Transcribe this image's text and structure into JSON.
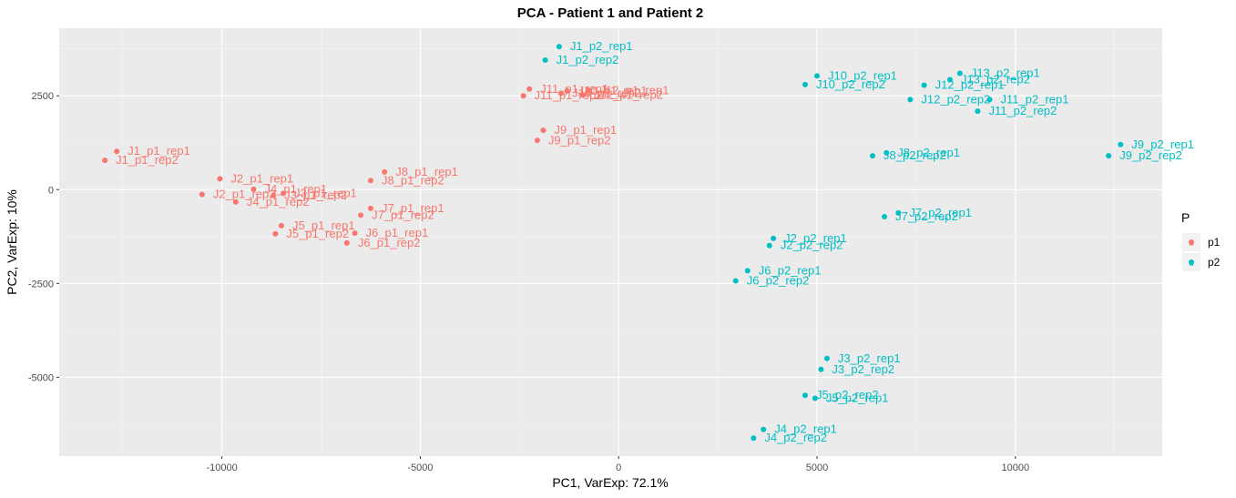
{
  "chart_data": {
    "type": "scatter",
    "title": "PCA - Patient 1 and Patient 2",
    "xlabel": "PC1, VarExp: 72.1%",
    "ylabel": "PC2, VarExp: 10%",
    "xlim": [
      -14100,
      13700
    ],
    "ylim": [
      -7100,
      4300
    ],
    "x_ticks": [
      -10000,
      -5000,
      0,
      5000,
      10000
    ],
    "x_tick_labels": [
      "-10000",
      "-5000",
      "0",
      "5000",
      "10000"
    ],
    "y_ticks": [
      -5000,
      -2500,
      0,
      2500
    ],
    "y_tick_labels": [
      "-5000",
      "-2500",
      "0",
      "2500"
    ],
    "grid": true,
    "panel_background": "#ebebeb",
    "legend": {
      "title": "P",
      "position": "right",
      "entries": [
        {
          "label": "p1",
          "key_glyph": "a",
          "color": "#F8766D"
        },
        {
          "label": "p2",
          "key_glyph": "a",
          "color": "#00BFC4"
        }
      ]
    },
    "series": [
      {
        "name": "p1",
        "color": "#F8766D",
        "points": [
          {
            "label": "J1_p1_rep1",
            "x": -12650,
            "y": 1020
          },
          {
            "label": "J1_p1_rep2",
            "x": -12950,
            "y": 780
          },
          {
            "label": "J2_p1_rep1",
            "x": -10050,
            "y": 290
          },
          {
            "label": "J2_p1_rep2",
            "x": -10500,
            "y": -130
          },
          {
            "label": "J3_p1_rep1",
            "x": -8450,
            "y": -100
          },
          {
            "label": "J3_p1_rep2",
            "x": -8700,
            "y": -150
          },
          {
            "label": "J4_p1_rep1",
            "x": -9200,
            "y": 10
          },
          {
            "label": "J4_p1_rep2",
            "x": -9650,
            "y": -330
          },
          {
            "label": "J5_p1_rep1",
            "x": -8500,
            "y": -960
          },
          {
            "label": "J5_p1_rep2",
            "x": -8650,
            "y": -1180
          },
          {
            "label": "J6_p1_rep1",
            "x": -6650,
            "y": -1160
          },
          {
            "label": "J6_p1_rep2",
            "x": -6850,
            "y": -1420
          },
          {
            "label": "J7_p1_rep1",
            "x": -6250,
            "y": -500
          },
          {
            "label": "J7_p1_rep2",
            "x": -6500,
            "y": -680
          },
          {
            "label": "J8_p1_rep1",
            "x": -5900,
            "y": 470
          },
          {
            "label": "J8_p1_rep2",
            "x": -6250,
            "y": 240
          },
          {
            "label": "J9_p1_rep1",
            "x": -1900,
            "y": 1580
          },
          {
            "label": "J9_p1_rep2",
            "x": -2050,
            "y": 1310
          },
          {
            "label": "J10_p1_rep1",
            "x": -1300,
            "y": 2630
          },
          {
            "label": "J10_p1_rep2",
            "x": -1450,
            "y": 2570
          },
          {
            "label": "J11_p1_rep1",
            "x": -2250,
            "y": 2680
          },
          {
            "label": "J11_p1_rep2",
            "x": -2400,
            "y": 2500
          },
          {
            "label": "J12_p1_rep1",
            "x": -750,
            "y": 2640
          },
          {
            "label": "J12_p1_rep2",
            "x": -900,
            "y": 2520
          }
        ]
      },
      {
        "name": "p2",
        "color": "#00BFC4",
        "points": [
          {
            "label": "J1_p2_rep1",
            "x": -1500,
            "y": 3810
          },
          {
            "label": "J1_p2_rep2",
            "x": -1850,
            "y": 3450
          },
          {
            "label": "J10_p2_rep1",
            "x": 5000,
            "y": 3030
          },
          {
            "label": "J10_p2_rep2",
            "x": 4700,
            "y": 2800
          },
          {
            "label": "J13_p2_rep1",
            "x": 8600,
            "y": 3100
          },
          {
            "label": "J13_p2_rep2",
            "x": 8350,
            "y": 2930
          },
          {
            "label": "J12_p2_rep1",
            "x": 7700,
            "y": 2780
          },
          {
            "label": "J12_p2_rep2",
            "x": 7350,
            "y": 2400
          },
          {
            "label": "J11_p2_rep1",
            "x": 9350,
            "y": 2400
          },
          {
            "label": "J11_p2_rep2",
            "x": 9050,
            "y": 2090
          },
          {
            "label": "J9_p2_rep1",
            "x": 12650,
            "y": 1200
          },
          {
            "label": "J9_p2_rep2",
            "x": 12350,
            "y": 900
          },
          {
            "label": "J8_p2_rep1",
            "x": 6750,
            "y": 980
          },
          {
            "label": "J8_p2_rep2",
            "x": 6400,
            "y": 900
          },
          {
            "label": "J7_p2_rep1",
            "x": 7050,
            "y": -620
          },
          {
            "label": "J7_p2_rep2",
            "x": 6700,
            "y": -720
          },
          {
            "label": "J2_p2_rep1",
            "x": 3900,
            "y": -1300
          },
          {
            "label": "J2_p2_rep2",
            "x": 3800,
            "y": -1490
          },
          {
            "label": "J6_p2_rep1",
            "x": 3250,
            "y": -2160
          },
          {
            "label": "J6_p2_rep2",
            "x": 2950,
            "y": -2430
          },
          {
            "label": "J3_p2_rep1",
            "x": 5250,
            "y": -4500
          },
          {
            "label": "J3_p2_rep2",
            "x": 5100,
            "y": -4790
          },
          {
            "label": "J5_p2_rep1",
            "x": 4950,
            "y": -5560
          },
          {
            "label": "J5_p2_rep2",
            "x": 4700,
            "y": -5480
          },
          {
            "label": "J4_p2_rep1",
            "x": 3650,
            "y": -6390
          },
          {
            "label": "J4_p2_rep2",
            "x": 3400,
            "y": -6620
          }
        ]
      }
    ]
  }
}
